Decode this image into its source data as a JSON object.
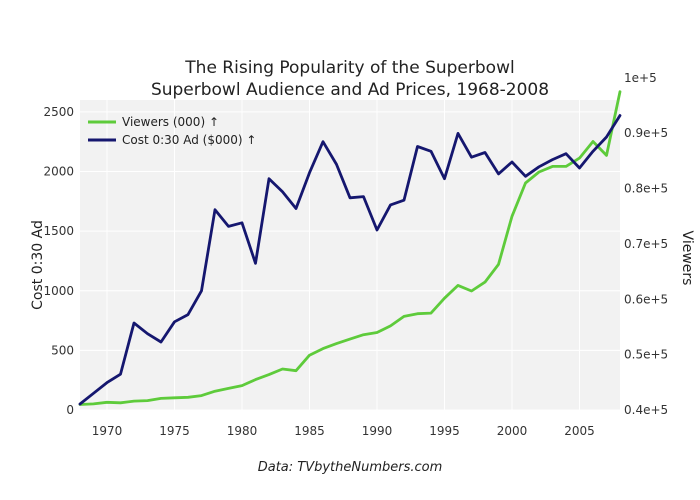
{
  "chart_data": {
    "type": "line",
    "title_line1": "The Rising Popularity of the Superbowl",
    "title_line2": "Superbowl Audience and Ad Prices, 1968-2008",
    "ylabel_left": "Cost 0:30 Ad",
    "ylabel_right": "Viewers",
    "source": "Data: TVbytheNumbers.com",
    "xlim": [
      1968,
      2008
    ],
    "x_ticks": [
      1970,
      1975,
      1980,
      1985,
      1990,
      1995,
      2000,
      2005
    ],
    "y_left_lim": [
      0,
      2600
    ],
    "y_left_ticks": [
      0,
      500,
      1000,
      1500,
      2000,
      2500
    ],
    "y_right_lim": [
      40000,
      96000
    ],
    "y_right_ticks": [
      40000,
      50000,
      60000,
      70000,
      80000,
      90000,
      100000
    ],
    "y_right_tick_labels": [
      "0.4e+5",
      "0.5e+5",
      "0.6e+5",
      "0.7e+5",
      "0.8e+5",
      "0.9e+5",
      "1e+5"
    ],
    "grid": true,
    "legend_position": "top-left",
    "series": [
      {
        "name": "Viewers (000) ↑",
        "axis": "right",
        "color": "#5ecb3b",
        "x": [
          1968,
          1969,
          1970,
          1971,
          1972,
          1973,
          1974,
          1975,
          1976,
          1977,
          1978,
          1979,
          1980,
          1981,
          1982,
          1983,
          1984,
          1985,
          1986,
          1987,
          1988,
          1989,
          1990,
          1991,
          1992,
          1993,
          1994,
          1995,
          1996,
          1997,
          1998,
          1999,
          2000,
          2001,
          2002,
          2003,
          2004,
          2005,
          2006,
          2007,
          2008
        ],
        "values": [
          41000,
          41100,
          41400,
          41300,
          41600,
          41700,
          42100,
          42200,
          42300,
          42600,
          43400,
          43900,
          44400,
          45500,
          46400,
          47400,
          47100,
          49900,
          51100,
          52000,
          52800,
          53600,
          54000,
          55200,
          56900,
          57400,
          57500,
          60200,
          62500,
          61500,
          63100,
          66300,
          75000,
          81000,
          83000,
          84000,
          84000,
          85500,
          88500,
          86000,
          97500
        ]
      },
      {
        "name": "Cost 0:30 Ad ($000) ↑",
        "axis": "left",
        "color": "#15176f",
        "x": [
          1968,
          1969,
          1970,
          1971,
          1972,
          1973,
          1974,
          1975,
          1976,
          1977,
          1978,
          1979,
          1980,
          1981,
          1982,
          1983,
          1984,
          1985,
          1986,
          1987,
          1988,
          1989,
          1990,
          1991,
          1992,
          1993,
          1994,
          1995,
          1996,
          1997,
          1998,
          1999,
          2000,
          2001,
          2002,
          2003,
          2004,
          2005,
          2006,
          2007,
          2008
        ],
        "values": [
          50,
          140,
          230,
          300,
          730,
          640,
          570,
          740,
          800,
          1000,
          1680,
          1540,
          1570,
          1230,
          1940,
          1830,
          1690,
          1990,
          2250,
          2060,
          1780,
          1790,
          1510,
          1720,
          1760,
          2210,
          2170,
          1940,
          2320,
          2120,
          2160,
          1980,
          2080,
          1960,
          2040,
          2100,
          2150,
          2030,
          2170,
          2290,
          2470
        ]
      }
    ]
  }
}
